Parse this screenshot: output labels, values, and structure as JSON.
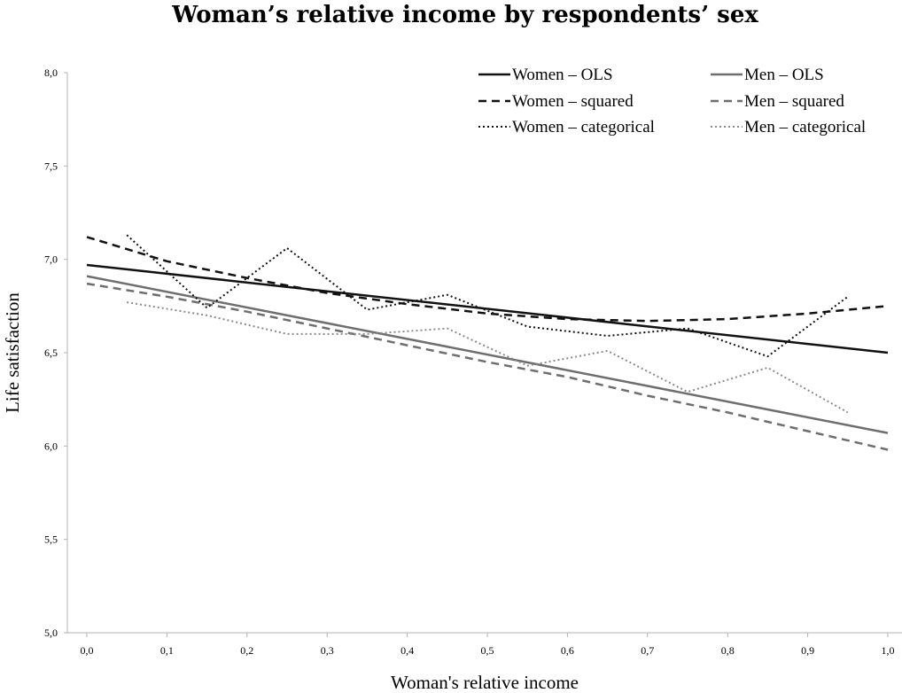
{
  "chart_data": {
    "type": "line",
    "title": "Woman’s relative income by respondents’ sex",
    "xlabel": "Woman's relative income",
    "ylabel": "Life satisfaction",
    "xlim": [
      0,
      1
    ],
    "ylim": [
      5,
      8
    ],
    "x_ticks": [
      "0,0",
      "0,1",
      "0,2",
      "0,3",
      "0,4",
      "0,5",
      "0,6",
      "0,7",
      "0,8",
      "0,9",
      "1,0"
    ],
    "y_ticks": [
      "5,0",
      "5,5",
      "6,0",
      "6,5",
      "7,0",
      "7,5",
      "8,0"
    ],
    "grid": false,
    "legend_position": "top-right",
    "series": [
      {
        "name": "Women – OLS",
        "color": "#111111",
        "style": "solid",
        "x": [
          0,
          1
        ],
        "values": [
          6.97,
          6.5
        ]
      },
      {
        "name": "Men – OLS",
        "color": "#6e6e6e",
        "style": "solid",
        "x": [
          0,
          1
        ],
        "values": [
          6.91,
          6.07
        ]
      },
      {
        "name": "Women – squared",
        "color": "#111111",
        "style": "dashed",
        "x": [
          0,
          0.1,
          0.2,
          0.3,
          0.4,
          0.5,
          0.6,
          0.7,
          0.8,
          0.9,
          1.0
        ],
        "values": [
          7.12,
          6.99,
          6.9,
          6.82,
          6.76,
          6.71,
          6.68,
          6.67,
          6.68,
          6.71,
          6.75
        ]
      },
      {
        "name": "Men – squared",
        "color": "#6e6e6e",
        "style": "dashed",
        "x": [
          0,
          0.1,
          0.2,
          0.3,
          0.4,
          0.5,
          0.6,
          0.7,
          0.8,
          0.9,
          1.0
        ],
        "values": [
          6.87,
          6.8,
          6.72,
          6.63,
          6.54,
          6.45,
          6.37,
          6.27,
          6.18,
          6.08,
          5.98
        ]
      },
      {
        "name": "Women – categorical",
        "color": "#111111",
        "style": "dotted",
        "x": [
          0.05,
          0.15,
          0.25,
          0.35,
          0.45,
          0.55,
          0.65,
          0.75,
          0.85,
          0.95
        ],
        "values": [
          7.13,
          6.74,
          7.06,
          6.73,
          6.81,
          6.64,
          6.59,
          6.63,
          6.48,
          6.8
        ]
      },
      {
        "name": "Men – categorical",
        "color": "#8a8a8a",
        "style": "dotted",
        "x": [
          0.05,
          0.15,
          0.25,
          0.35,
          0.45,
          0.55,
          0.65,
          0.75,
          0.85,
          0.95
        ],
        "values": [
          6.77,
          6.7,
          6.6,
          6.6,
          6.63,
          6.43,
          6.51,
          6.29,
          6.42,
          6.18
        ]
      }
    ],
    "legend_order": [
      0,
      1,
      2,
      3,
      4,
      5
    ]
  }
}
